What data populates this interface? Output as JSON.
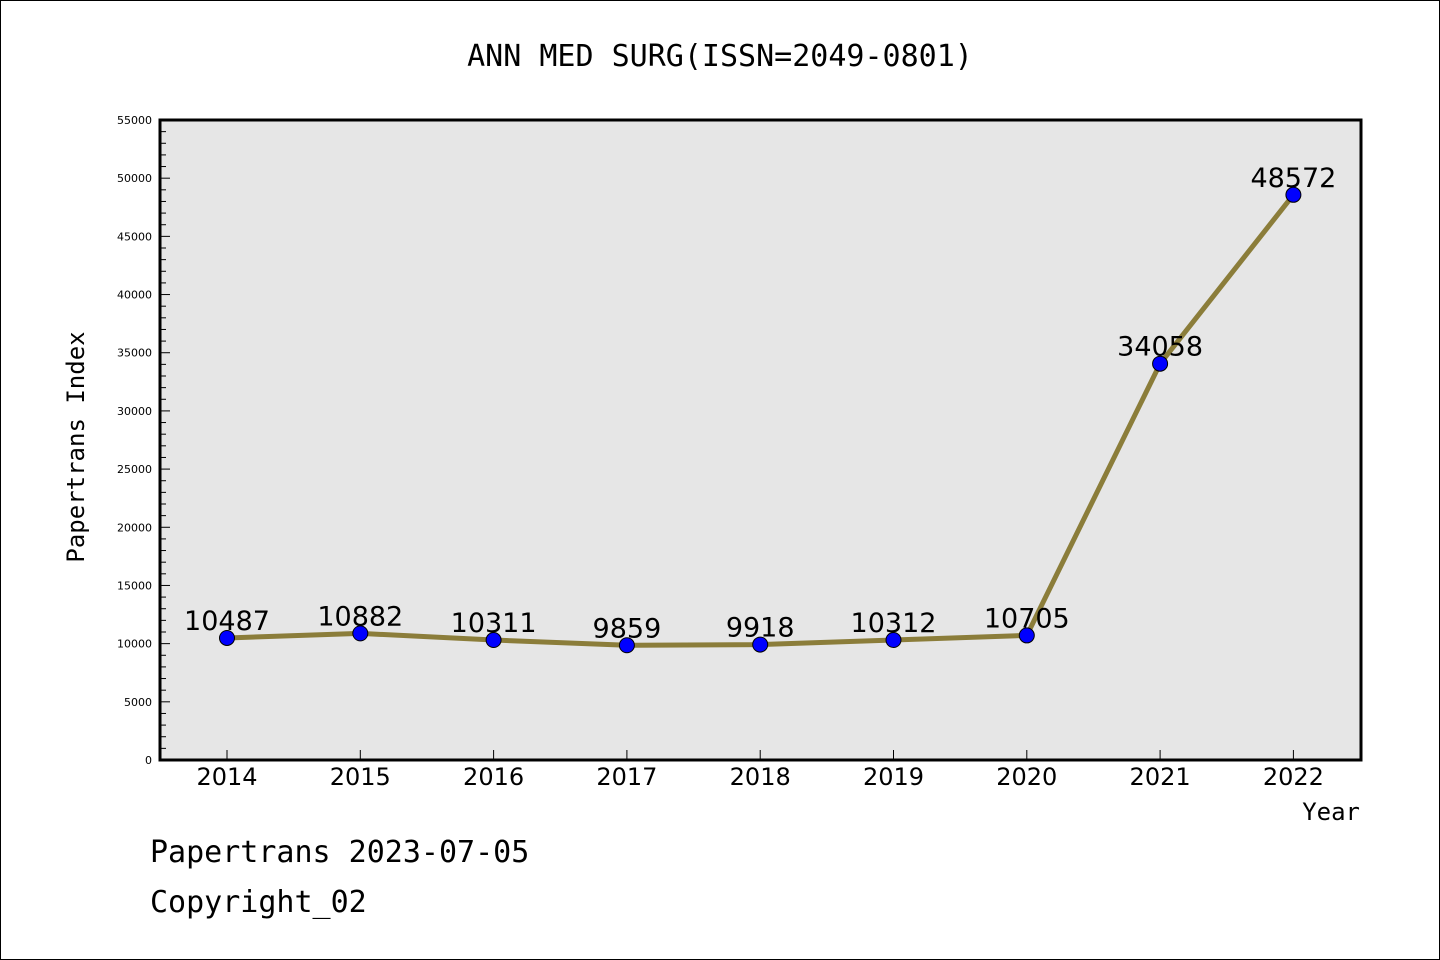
{
  "chart_data": {
    "type": "line",
    "title": "ANN MED SURG(ISSN=2049-0801)",
    "xlabel": "Year",
    "ylabel": "Papertrans Index",
    "categories": [
      "2014",
      "2015",
      "2016",
      "2017",
      "2018",
      "2019",
      "2020",
      "2021",
      "2022"
    ],
    "series": [
      {
        "values": [
          10487,
          10882,
          10311,
          9859,
          9918,
          10312,
          10705,
          34058,
          48572
        ]
      }
    ],
    "ylim": [
      0,
      55000
    ],
    "yticks": [
      0,
      5000,
      10000,
      15000,
      20000,
      25000,
      30000,
      35000,
      40000,
      45000,
      50000,
      55000
    ],
    "grid": false,
    "legend": "none",
    "colors": {
      "line": "#8b7d3a",
      "marker": "#0000ff",
      "plot_background": "#e6e6e6"
    }
  },
  "footer": {
    "line1": "Papertrans 2023-07-05",
    "line2": "Copyright_02"
  }
}
